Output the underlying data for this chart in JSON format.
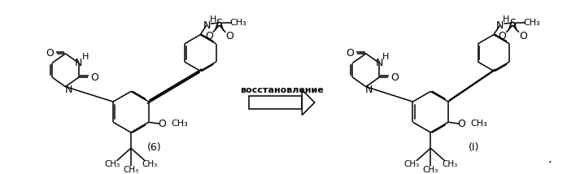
{
  "background_color": "#ffffff",
  "arrow_text": "восстановление",
  "label_6": "(6)",
  "label_I": "(I)",
  "dot": ".",
  "fig_width": 6.97,
  "fig_height": 2.14,
  "dpi": 100,
  "line_color": "#000000",
  "line_width": 1.1,
  "font_size_label": 9,
  "font_size_arrow": 8,
  "font_weight_arrow": "bold"
}
